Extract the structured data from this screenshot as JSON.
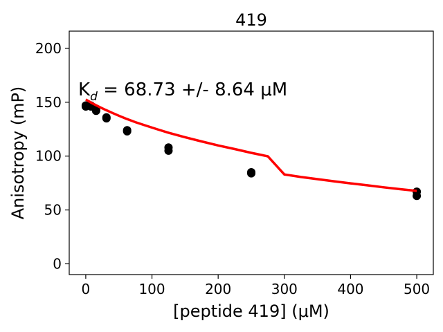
{
  "chart_data": {
    "type": "scatter",
    "title": "419",
    "xlabel": "[peptide 419] (μM)",
    "ylabel": "Anisotropy (mP)",
    "xlim": [
      -25,
      525
    ],
    "ylim": [
      -10,
      216
    ],
    "xticks": [
      0,
      100,
      200,
      300,
      400,
      500
    ],
    "yticks": [
      0,
      50,
      100,
      150,
      200
    ],
    "grid": false,
    "annotation": {
      "text": "K",
      "subscript": "d",
      "rest": " = 68.73 +/- 8.64 μM"
    },
    "series": [
      {
        "type": "scatter",
        "color": "#000000",
        "points": [
          [
            0,
            146
          ],
          [
            0,
            147
          ],
          [
            7.8,
            146
          ],
          [
            7.8,
            147
          ],
          [
            15.6,
            142
          ],
          [
            15.6,
            143
          ],
          [
            31.25,
            135
          ],
          [
            31.25,
            136
          ],
          [
            62.5,
            123
          ],
          [
            62.5,
            124
          ],
          [
            125,
            105
          ],
          [
            125,
            108
          ],
          [
            250,
            84
          ],
          [
            250,
            85
          ],
          [
            500,
            63
          ],
          [
            500,
            67
          ]
        ]
      },
      {
        "type": "line",
        "color": "#ff0000",
        "points": [
          [
            0,
            152.5
          ],
          [
            10,
            149.0
          ],
          [
            20,
            145.8
          ],
          [
            30,
            142.9
          ],
          [
            40,
            140.1
          ],
          [
            50,
            137.5
          ],
          [
            60,
            135.0
          ],
          [
            75,
            131.5
          ],
          [
            90,
            128.4
          ],
          [
            110,
            124.5
          ],
          [
            125,
            121.7
          ],
          [
            150,
            117.5
          ],
          [
            175,
            113.6
          ],
          [
            200,
            109.9
          ],
          [
            225,
            106.5
          ],
          [
            250,
            103.0
          ],
          [
            275,
            99.8
          ],
          [
            300,
            83.0
          ],
          [
            325,
            80.6
          ],
          [
            350,
            78.6
          ],
          [
            375,
            76.6
          ],
          [
            400,
            74.7
          ],
          [
            425,
            72.9
          ],
          [
            450,
            71.0
          ],
          [
            475,
            69.3
          ],
          [
            500,
            67.7
          ]
        ]
      }
    ]
  }
}
